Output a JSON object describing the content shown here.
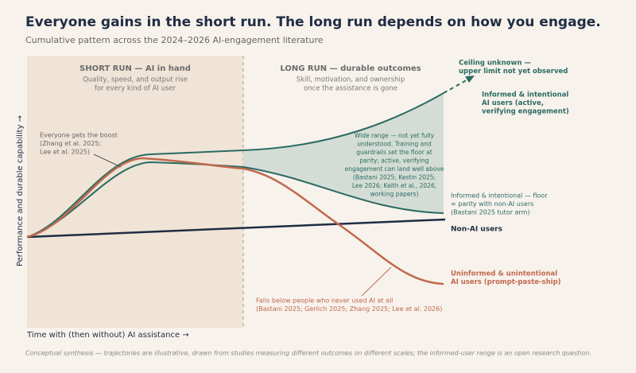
{
  "header": {
    "title": "Everyone gains in the short run. The long run depends on how you engage.",
    "subtitle": "Cumulative pattern across the 2024–2026 AI-engagement literature"
  },
  "axes": {
    "y_label": "Performance and durable capability →",
    "x_label": "Time with (then without) AI assistance →"
  },
  "phases": [
    {
      "title": "SHORT RUN — AI in hand",
      "lines": [
        "Quality, speed, and output rise",
        "for every kind of AI user"
      ]
    },
    {
      "title": "LONG RUN — durable outcomes",
      "lines": [
        "Skill, motivation, and ownership",
        "once the assistance is gone"
      ]
    }
  ],
  "annotations": {
    "boost": [
      "Everyone gets the boost",
      "(Zhang et al. 2025;",
      "Lee et al. 2025)"
    ],
    "range": [
      "Wide range — not yet fully",
      "understood. Training and",
      "guardrails set the floor at",
      "parity; active, verifying",
      "engagement can land well above",
      "(Bastani 2025; Kestin 2025;",
      "Lee 2026; Keith et al., 2026,",
      "working papers)"
    ],
    "ceiling": [
      "Ceiling unknown —",
      "upper limit not yet observed"
    ],
    "falls": [
      "Falls below people who never used AI at all",
      "(Bastani 2025; Gerlich 2025; Zhang 2025; Lee et al. 2026)"
    ]
  },
  "labels": {
    "informed": [
      "Informed & intentional",
      "AI users (active,",
      "verifying engagement)"
    ],
    "floor": [
      "Informed & intentional — floor",
      "≈ parity with non-AI users",
      "(Bastani 2025 tutor arm)"
    ],
    "non_ai": "Non-AI users",
    "uninformed": [
      "Uninformed & unintentional",
      "AI users (prompt-paste-ship)"
    ]
  },
  "footnote": "Conceptual synthesis — trajectories are illustrative, drawn from studies measuring different outcomes on different scales; the informed-user range is an open research question."
}
